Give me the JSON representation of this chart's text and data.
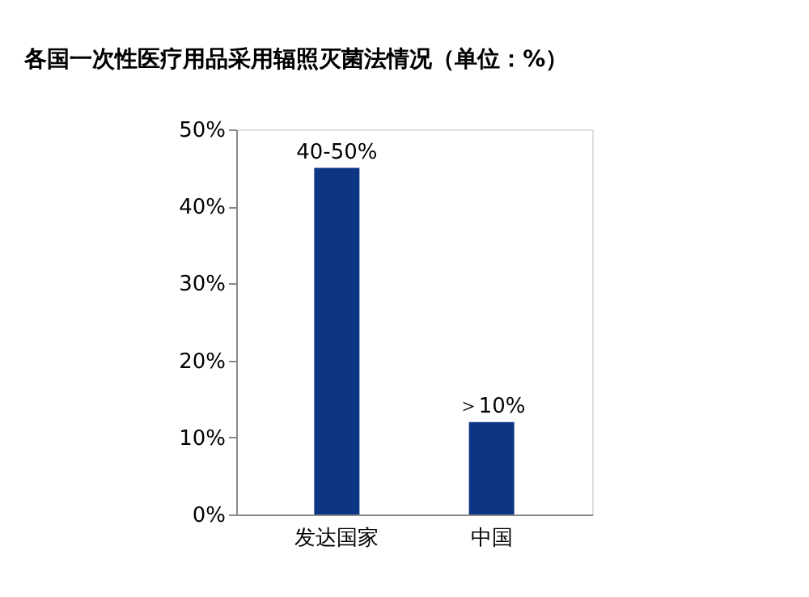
{
  "chart_data": {
    "type": "bar",
    "title": "各国一次性医疗用品采用辐照灭菌法情况（单位：%）",
    "categories": [
      "发达国家",
      "中国"
    ],
    "values": [
      45,
      12
    ],
    "annotations": [
      {
        "text": "40-50%",
        "x": "发达国家",
        "y": 45
      },
      {
        "text": "＞10%",
        "x": "中国",
        "y": 12
      }
    ],
    "color": "#0c3683",
    "ylim": [
      0,
      50
    ],
    "yticks": [
      {
        "value": 0,
        "label": "0%"
      },
      {
        "value": 10,
        "label": "10%"
      },
      {
        "value": 20,
        "label": "20%"
      },
      {
        "value": 30,
        "label": "30%"
      },
      {
        "value": 40,
        "label": "40%"
      },
      {
        "value": 50,
        "label": "50%"
      }
    ],
    "grid": false
  }
}
